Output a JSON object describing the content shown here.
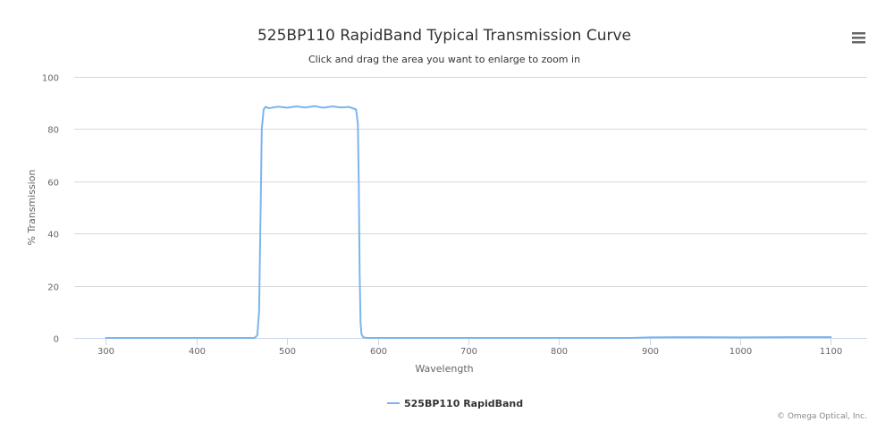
{
  "chart_data": {
    "type": "line",
    "title": "525BP110 RapidBand Typical Transmission Curve",
    "subtitle": "Click and drag the area you want to enlarge to zoom in",
    "xlabel": "Wavelength",
    "ylabel": "% Transmission",
    "xlim": [
      265,
      1140
    ],
    "ylim": [
      0,
      100
    ],
    "x_ticks": [
      300,
      400,
      500,
      600,
      700,
      800,
      900,
      1000,
      1100
    ],
    "y_ticks": [
      0,
      20,
      40,
      60,
      80,
      100
    ],
    "grid": "horizontal",
    "legend_position": "bottom-center",
    "series": [
      {
        "name": "525BP110 RapidBand",
        "color": "#7cb5ec",
        "x": [
          300,
          450,
          464,
          467,
          469,
          471,
          472,
          474,
          476,
          480,
          490,
          500,
          510,
          520,
          530,
          540,
          550,
          560,
          568,
          572,
          576,
          578,
          579,
          580,
          581,
          582,
          584,
          588,
          600,
          700,
          800,
          880,
          900,
          950,
          1000,
          1050,
          1100
        ],
        "y": [
          0,
          0,
          0,
          1,
          10,
          55,
          80,
          87.5,
          88.5,
          88,
          88.6,
          88.2,
          88.7,
          88.3,
          88.8,
          88.2,
          88.7,
          88.3,
          88.5,
          88,
          87.5,
          82,
          60,
          25,
          6,
          1.5,
          0.2,
          0,
          0,
          0,
          0,
          0,
          0.2,
          0.3,
          0.2,
          0.3,
          0.3
        ]
      }
    ]
  },
  "ui": {
    "menu_icon": "hamburger-menu-icon",
    "credits": "© Omega Optical, Inc."
  }
}
